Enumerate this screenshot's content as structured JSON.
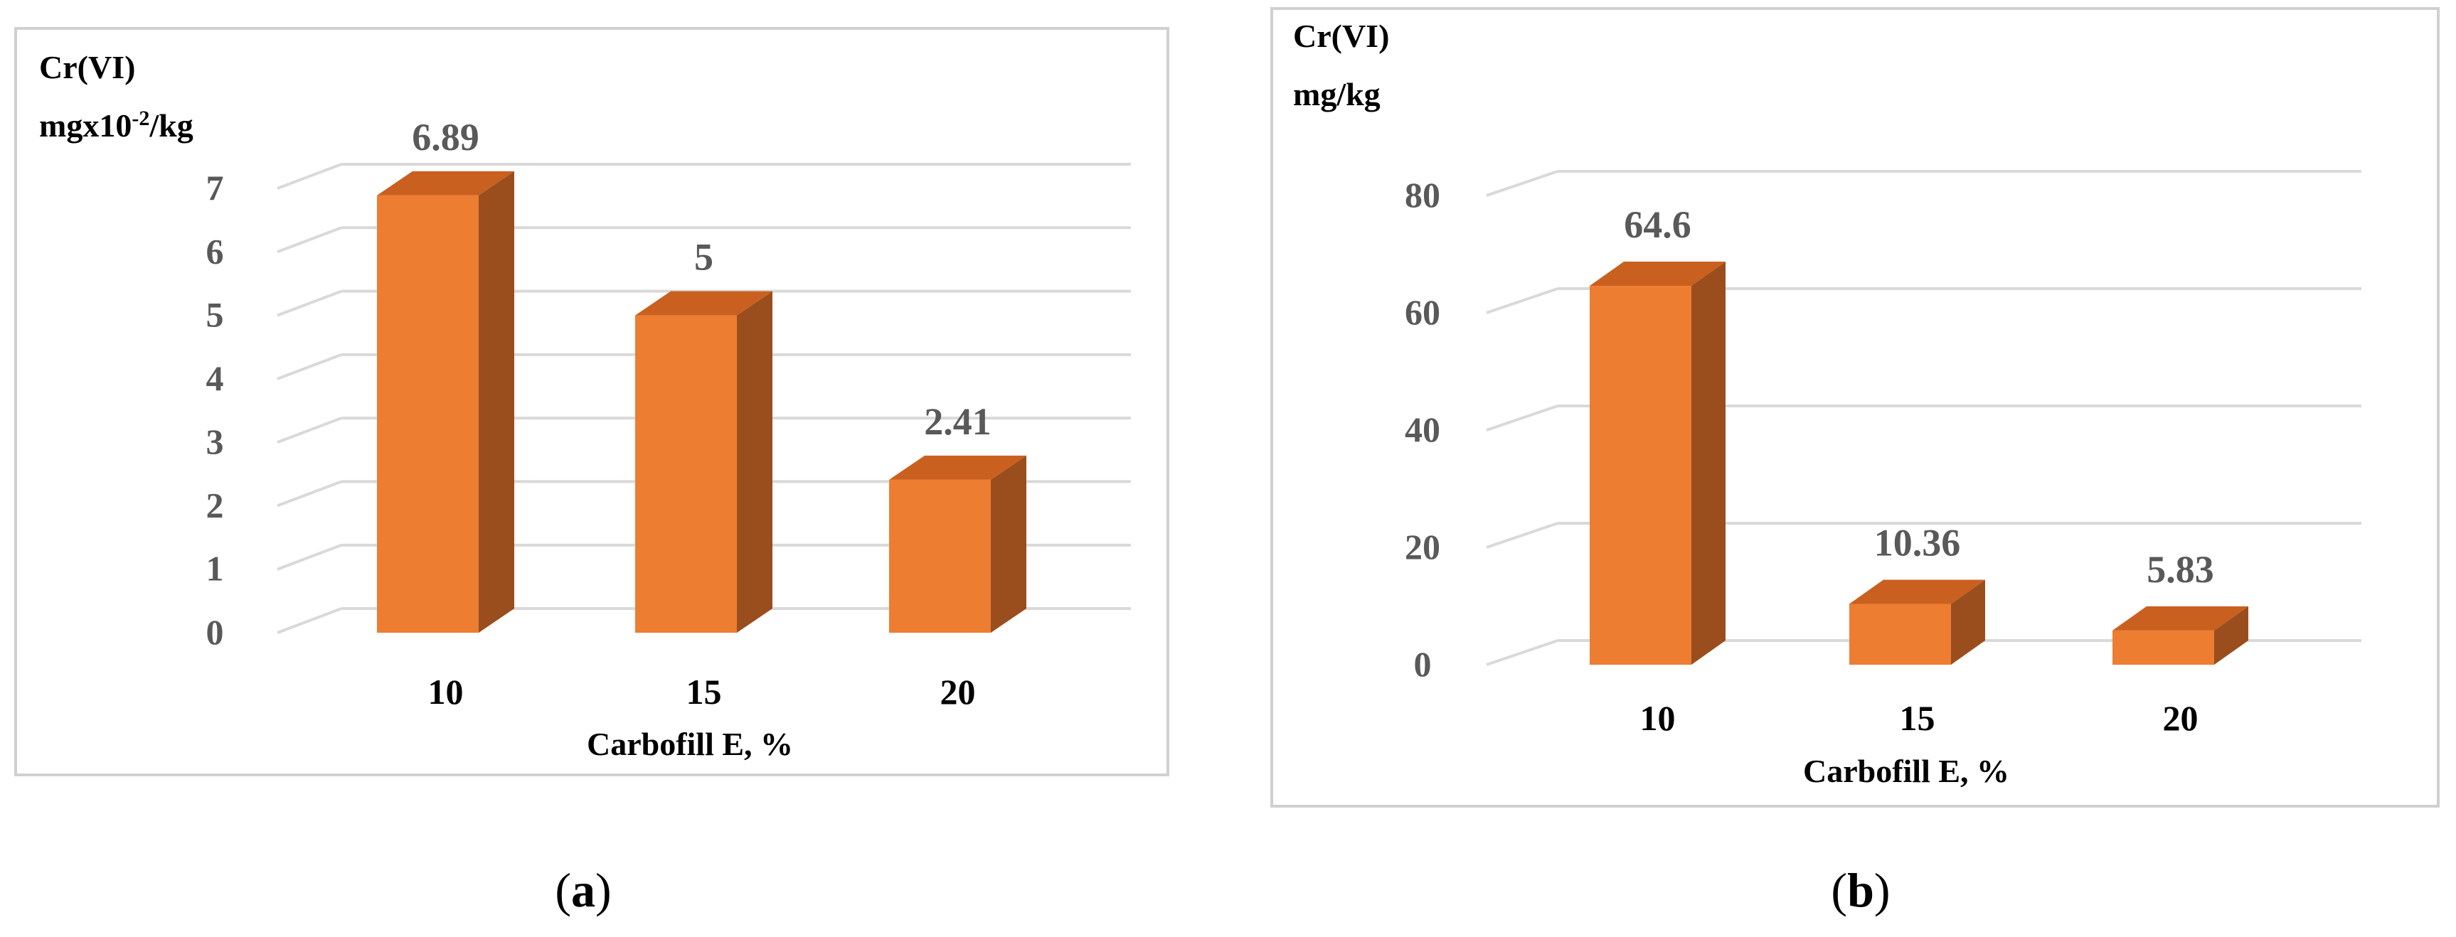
{
  "colors": {
    "bar_front": "#ED7D31",
    "bar_top": "#C9601F",
    "bar_side": "#9A4E1E",
    "grid": "#D9D9D9",
    "frame": "#D0D0D0"
  },
  "chart_data": [
    {
      "type": "bar",
      "panel_label": "a",
      "ylabel_line1": "Cr(VI)",
      "ylabel_line2_base": "mgx10",
      "ylabel_line2_sup": "-2",
      "ylabel_line2_tail": "/kg",
      "xlabel": "Carbofill E, %",
      "categories": [
        "10",
        "15",
        "20"
      ],
      "values": [
        6.89,
        5,
        2.41
      ],
      "data_labels": [
        "6.89",
        "5",
        "2.41"
      ],
      "ylim": [
        0,
        7
      ],
      "yticks": [
        "0",
        "1",
        "2",
        "3",
        "4",
        "5",
        "6",
        "7"
      ],
      "grid": true
    },
    {
      "type": "bar",
      "panel_label": "b",
      "ylabel_line1": "Cr(VI)",
      "ylabel_line2": "mg/kg",
      "xlabel": "Carbofill E, %",
      "categories": [
        "10",
        "15",
        "20"
      ],
      "values": [
        64.6,
        10.36,
        5.83
      ],
      "data_labels": [
        "64.6",
        "10.36",
        "5.83"
      ],
      "ylim": [
        0,
        80
      ],
      "yticks": [
        "0",
        "20",
        "40",
        "60",
        "80"
      ],
      "grid": true
    }
  ]
}
